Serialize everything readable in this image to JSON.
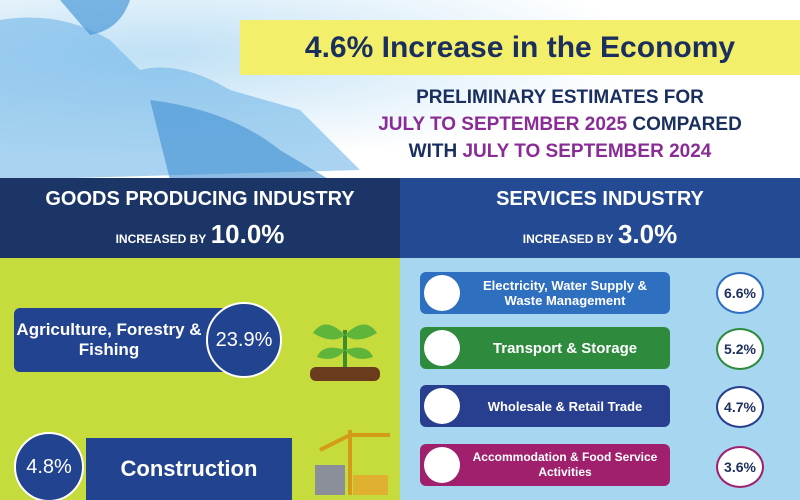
{
  "header": {
    "title": "4.6% Increase in the Economy",
    "subtitle": {
      "line1": "PRELIMINARY ESTIMATES FOR",
      "period_current": "JULY TO SEPTEMBER 2025",
      "compared": "COMPARED",
      "with": "WITH",
      "period_previous": "JULY TO SEPTEMBER 2024"
    }
  },
  "goods": {
    "title": "GOODS PRODUCING INDUSTRY",
    "increase_label": "INCREASED BY",
    "increase": "10.0%",
    "items": [
      {
        "label": "Agriculture, Forestry & Fishing",
        "value": "23.9%"
      },
      {
        "label": "Construction",
        "value": "4.8%"
      }
    ]
  },
  "services": {
    "title": "SERVICES INDUSTRY",
    "increase_label": "INCREASED BY",
    "increase": "3.0%",
    "items": [
      {
        "label": "Electricity, Water Supply & Waste Management",
        "value": "6.6%"
      },
      {
        "label": "Transport & Storage",
        "value": "5.2%"
      },
      {
        "label": "Wholesale & Retail Trade",
        "value": "4.7%"
      },
      {
        "label": "Accommodation & Food Service Activities",
        "value": "3.6%"
      }
    ]
  }
}
